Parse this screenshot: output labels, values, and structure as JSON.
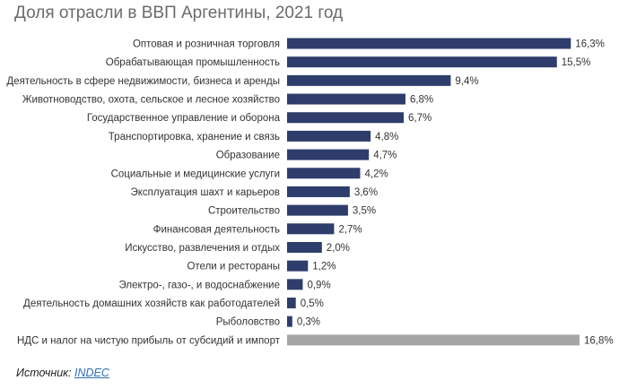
{
  "page": {
    "title": "Доля отрасли в ВВП Аргентины, 2021 год",
    "source_label": "Источник:",
    "source_link": "INDEC"
  },
  "colors": {
    "bar": "#2e3d6b",
    "bar_other": "#a6a6a6",
    "title": "#6b6b6b",
    "link": "#2d6fb3"
  },
  "chart_data": {
    "type": "bar",
    "orientation": "horizontal",
    "title": "Доля отрасли в ВВП Аргентины, 2021 год",
    "xlabel": "",
    "ylabel": "",
    "xlim": [
      0,
      16.8
    ],
    "grid": false,
    "legend": "none",
    "categories": [
      "Оптовая и розничная торговля",
      "Обрабатывающая промышленность",
      "Деятельность в сфере недвижимости, бизнеса и аренды",
      "Животноводство, охота, сельское и лесное хозяйство",
      "Государственное управление и оборона",
      "Транспортировка, хранение и связь",
      "Образование",
      "Социальные и медицинские услуги",
      "Эксплуатация шахт и карьеров",
      "Строительство",
      "Финансовая деятельность",
      "Искусство, развлечения и отдых",
      "Отели и рестораны",
      "Электро-, газо-, и водоснабжение",
      "Деятельность домашних хозяйств как работодателей",
      "Рыболовство",
      "НДС и налог на чистую прибыль от субсидий и импорт"
    ],
    "values": [
      16.3,
      15.5,
      9.4,
      6.8,
      6.7,
      4.8,
      4.7,
      4.2,
      3.6,
      3.5,
      2.7,
      2.0,
      1.2,
      0.9,
      0.5,
      0.3,
      16.8
    ],
    "value_labels": [
      "16,3%",
      "15,5%",
      "9,4%",
      "6,8%",
      "6,7%",
      "4,8%",
      "4,7%",
      "4,2%",
      "3,6%",
      "3,5%",
      "2,7%",
      "2,0%",
      "1,2%",
      "0,9%",
      "0,5%",
      "0,3%",
      "16,8%"
    ],
    "highlight_last": true
  }
}
